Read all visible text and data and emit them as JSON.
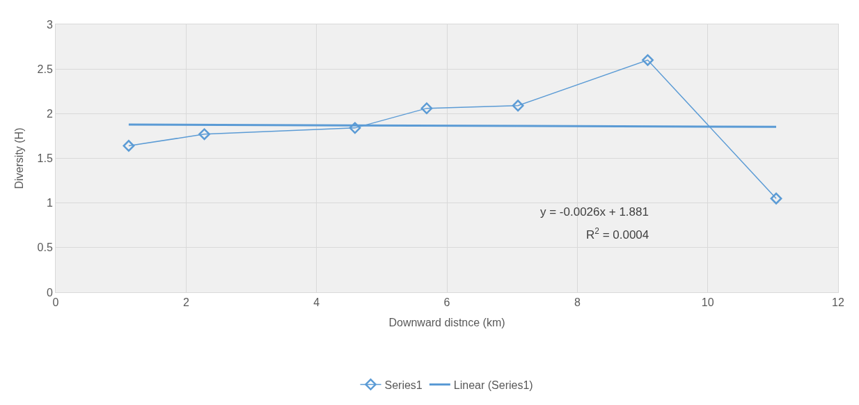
{
  "chart_data": {
    "type": "line",
    "xlabel": "Downward distnce (km)",
    "ylabel": "Diversity (H)",
    "x": [
      1.12,
      2.28,
      4.59,
      5.69,
      7.09,
      9.08,
      11.05
    ],
    "series": [
      {
        "name": "Series1",
        "color": "#5b9bd5",
        "values": [
          1.64,
          1.77,
          1.84,
          2.06,
          2.09,
          2.6,
          1.05
        ],
        "marker": "diamond"
      },
      {
        "name": "Linear (Series1)",
        "color": "#5b9bd5",
        "x": [
          1.12,
          11.05
        ],
        "values": [
          1.878,
          1.852
        ],
        "marker": "none"
      }
    ],
    "xlim": [
      0,
      12
    ],
    "xticks": [
      0,
      2,
      4,
      6,
      8,
      10,
      12
    ],
    "ylim": [
      0,
      3
    ],
    "yticks": [
      0,
      0.5,
      1,
      1.5,
      2,
      2.5,
      3
    ],
    "grid": true,
    "legend": "bottom",
    "annotations": [
      "y = -0.0026x + 1.881",
      "R$^{2}$ = 0.0004"
    ]
  }
}
